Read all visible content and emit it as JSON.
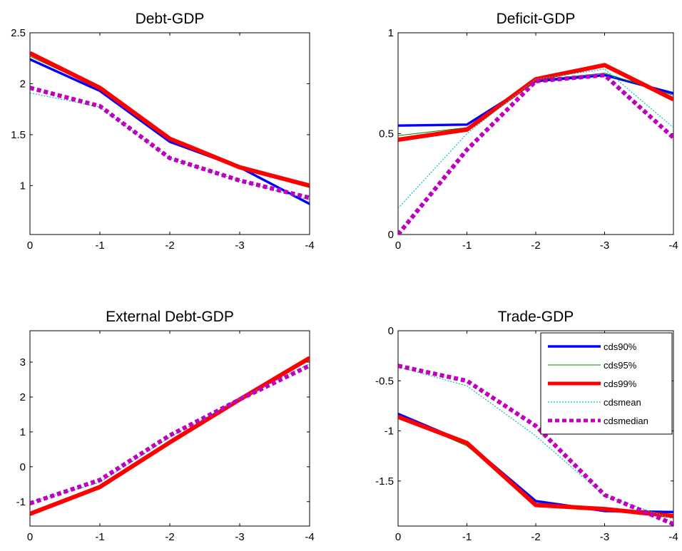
{
  "chart_data": [
    {
      "type": "line",
      "title": "Debt-GDP",
      "xlabel": "",
      "ylabel": "",
      "x": [
        0,
        -1,
        -2,
        -3,
        -4
      ],
      "xticks": [
        "0",
        "-1",
        "-2",
        "-3",
        "-4"
      ],
      "yticks": [
        "1",
        "1.5",
        "2",
        "2.5"
      ],
      "ylim": [
        0.52,
        2.5
      ],
      "series": [
        {
          "name": "cds90%",
          "values": [
            2.24,
            1.93,
            1.43,
            1.18,
            0.82
          ]
        },
        {
          "name": "cds95%",
          "values": [
            2.27,
            1.95,
            1.45,
            1.17,
            0.98
          ]
        },
        {
          "name": "cds99%",
          "values": [
            2.3,
            1.96,
            1.46,
            1.18,
            1.0
          ]
        },
        {
          "name": "cdsmean",
          "values": [
            1.91,
            1.77,
            1.27,
            1.05,
            0.86
          ]
        },
        {
          "name": "cdsmedian",
          "values": [
            1.96,
            1.78,
            1.27,
            1.05,
            0.88
          ]
        }
      ]
    },
    {
      "type": "line",
      "title": "Deficit-GDP",
      "xlabel": "",
      "ylabel": "",
      "x": [
        0,
        -1,
        -2,
        -3,
        -4
      ],
      "xticks": [
        "0",
        "-1",
        "-2",
        "-3",
        "-4"
      ],
      "yticks": [
        "0",
        "0.5",
        "1"
      ],
      "ylim": [
        0,
        1
      ],
      "series": [
        {
          "name": "cds90%",
          "values": [
            0.54,
            0.545,
            0.76,
            0.79,
            0.7
          ]
        },
        {
          "name": "cds95%",
          "values": [
            0.49,
            0.53,
            0.765,
            0.8,
            0.69
          ]
        },
        {
          "name": "cds99%",
          "values": [
            0.47,
            0.52,
            0.77,
            0.84,
            0.67
          ]
        },
        {
          "name": "cdsmean",
          "values": [
            0.13,
            0.5,
            0.77,
            0.82,
            0.53
          ]
        },
        {
          "name": "cdsmedian",
          "values": [
            0.0,
            0.42,
            0.76,
            0.79,
            0.48
          ]
        }
      ]
    },
    {
      "type": "line",
      "title": "External Debt-GDP",
      "xlabel": "",
      "ylabel": "",
      "x": [
        0,
        -1,
        -2,
        -3,
        -4
      ],
      "xticks": [
        "0",
        "-1",
        "-2",
        "-3",
        "-4"
      ],
      "yticks": [
        "-1",
        "0",
        "1",
        "2",
        "3"
      ],
      "ylim": [
        -1.7,
        3.9
      ],
      "series": [
        {
          "name": "cds90%",
          "values": [
            -1.35,
            -0.6,
            0.7,
            1.92,
            3.1
          ]
        },
        {
          "name": "cds95%",
          "values": [
            -1.33,
            -0.57,
            0.72,
            1.93,
            3.05
          ]
        },
        {
          "name": "cds99%",
          "values": [
            -1.35,
            -0.58,
            0.7,
            1.93,
            3.12
          ]
        },
        {
          "name": "cdsmean",
          "values": [
            -1.02,
            -0.45,
            0.85,
            1.95,
            2.95
          ]
        },
        {
          "name": "cdsmedian",
          "values": [
            -1.05,
            -0.38,
            0.9,
            1.93,
            2.9
          ]
        }
      ]
    },
    {
      "type": "line",
      "title": "Trade-GDP",
      "xlabel": "",
      "ylabel": "",
      "x": [
        0,
        -1,
        -2,
        -3,
        -4
      ],
      "xticks": [
        "0",
        "-1",
        "-2",
        "-3",
        "-4"
      ],
      "yticks": [
        "-1.5",
        "-1",
        "-0.5",
        "0"
      ],
      "ylim": [
        -1.95,
        0
      ],
      "legend": {
        "position": "top-right"
      },
      "series": [
        {
          "name": "cds90%",
          "values": [
            -0.83,
            -1.12,
            -1.7,
            -1.8,
            -1.81
          ]
        },
        {
          "name": "cds95%",
          "values": [
            -0.85,
            -1.15,
            -1.72,
            -1.78,
            -1.84
          ]
        },
        {
          "name": "cds99%",
          "values": [
            -0.86,
            -1.12,
            -1.74,
            -1.78,
            -1.85
          ]
        },
        {
          "name": "cdsmean",
          "values": [
            -0.36,
            -0.55,
            -1.05,
            -1.65,
            -1.88
          ]
        },
        {
          "name": "cdsmedian",
          "values": [
            -0.35,
            -0.5,
            -0.95,
            -1.64,
            -1.93
          ]
        }
      ]
    }
  ],
  "series_styles": [
    {
      "color": "#0000ff",
      "dash": "",
      "width": 3.4
    },
    {
      "color": "#008000",
      "dash": "",
      "width": 1
    },
    {
      "color": "#ff0000",
      "dash": "",
      "width": 6
    },
    {
      "color": "#00bfbf",
      "dash": "2,2",
      "width": 1.2
    },
    {
      "color": "#bf00bf",
      "dash": "6,4",
      "width": 6
    }
  ]
}
